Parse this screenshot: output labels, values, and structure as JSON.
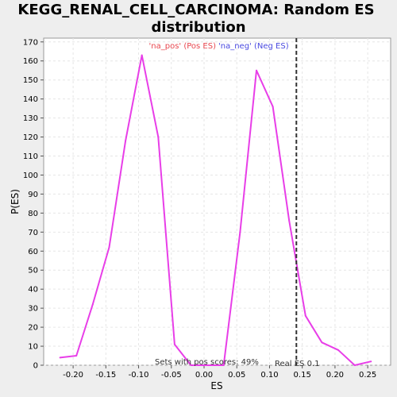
{
  "chart_data": {
    "type": "line",
    "title_line1": "KEGG_RENAL_CELL_CARCINOMA: Random ES",
    "title_line2": "distribution",
    "xlabel": "ES",
    "ylabel": "P(ES)",
    "xlim": [
      -0.245,
      0.285
    ],
    "ylim": [
      0,
      172
    ],
    "xticks": [
      -0.2,
      -0.15,
      -0.1,
      -0.05,
      0.0,
      0.05,
      0.1,
      0.15,
      0.2,
      0.25
    ],
    "xtick_labels": [
      "-0.20",
      "-0.15",
      "-0.10",
      "-0.05",
      "0.00",
      "0.05",
      "0.10",
      "0.15",
      "0.20",
      "0.25"
    ],
    "yticks": [
      0,
      10,
      20,
      30,
      40,
      50,
      60,
      70,
      80,
      90,
      100,
      110,
      120,
      130,
      140,
      150,
      160,
      170
    ],
    "ytick_labels": [
      "0",
      "10",
      "20",
      "30",
      "40",
      "50",
      "60",
      "70",
      "80",
      "90",
      "100",
      "110",
      "120",
      "130",
      "140",
      "150",
      "160",
      "170"
    ],
    "grid": true,
    "legend_placement": "top-center",
    "legend": [
      {
        "label": "'na_pos' (Pos ES)",
        "color": "#e8474f"
      },
      {
        "label": "'na_neg' (Neg ES)",
        "color": "#4a4ae0"
      }
    ],
    "series": [
      {
        "color": "#e83ee8",
        "x": [
          -0.22,
          -0.195,
          -0.17,
          -0.145,
          -0.12,
          -0.095,
          -0.07,
          -0.045,
          -0.02,
          0.005,
          0.03,
          0.055,
          0.08,
          0.105,
          0.13,
          0.155,
          0.18,
          0.205,
          0.23,
          0.255
        ],
        "y": [
          4,
          5,
          32,
          62,
          118,
          163,
          120,
          11,
          0,
          0,
          0,
          70,
          155,
          136,
          76,
          26,
          12,
          8,
          0,
          2
        ]
      }
    ],
    "reference_line": {
      "x": 0.141,
      "label": "Real ES 0.1",
      "style": "dashed",
      "color": "#333333"
    },
    "annotation": "Sets with pos scores: 49%"
  }
}
